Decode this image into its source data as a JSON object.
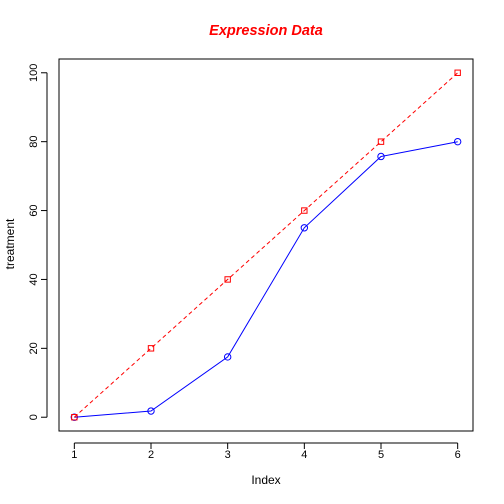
{
  "chart_data": {
    "type": "line",
    "title": "Expression Data",
    "xlabel": "Index",
    "ylabel": "treatment",
    "x": [
      1,
      2,
      3,
      4,
      5,
      6
    ],
    "xticks": [
      "1",
      "2",
      "3",
      "4",
      "5",
      "6"
    ],
    "yticks": [
      "0",
      "20",
      "40",
      "60",
      "80",
      "100"
    ],
    "xlim": [
      0.8,
      6.2
    ],
    "ylim": [
      -4,
      104
    ],
    "grid": false,
    "legend": "none",
    "series": [
      {
        "values": [
          0,
          1.8,
          17.5,
          55,
          75.7,
          80
        ],
        "color": "#0000ff",
        "line_style": "solid",
        "marker": "circle"
      },
      {
        "values": [
          0,
          20,
          40,
          60,
          80,
          100
        ],
        "color": "#ff0000",
        "line_style": "dashed",
        "marker": "square"
      }
    ],
    "title_color": "#ff0000"
  }
}
